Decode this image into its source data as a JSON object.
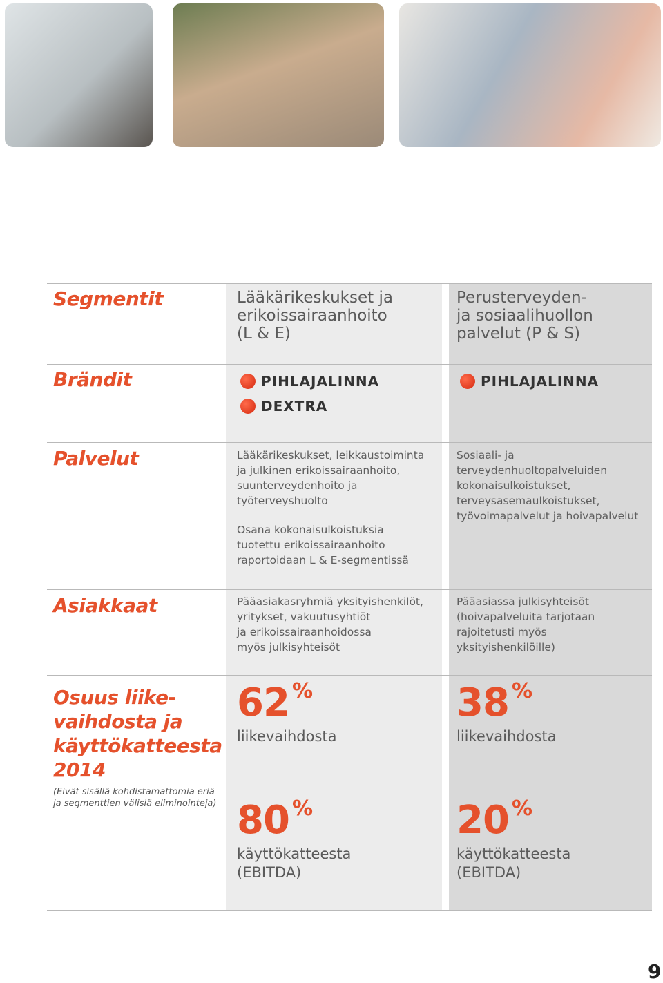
{
  "segments": {
    "label": "Segmentit",
    "le": [
      "Lääkärikeskukset ja",
      "erikoissairaanhoito",
      "(L & E)"
    ],
    "ps": [
      "Perusterveyden-",
      "ja sosiaalihuollon",
      "palvelut (P & S)"
    ]
  },
  "brands": {
    "label": "Brändit",
    "le": [
      "PIHLAJALINNA",
      "DEXTRA"
    ],
    "ps": [
      "PIHLAJALINNA"
    ]
  },
  "services": {
    "label": "Palvelut",
    "le": [
      "Lääkärikeskukset, leikkaustoiminta",
      "ja julkinen erikoissairaanhoito,",
      "suunterveydenhoito ja",
      "työterveyshuolto"
    ],
    "le_note": [
      "Osana kokonaisulkoistuksia",
      "tuotettu erikoissairaanhoito",
      "raportoidaan L & E-segmentissä"
    ],
    "ps": [
      "Sosiaali- ja",
      "terveydenhuoltopalveluiden",
      "kokonaisulkoistukset,",
      "terveysasemaulkoistukset,",
      "työvoimapalvelut ja hoivapalvelut"
    ]
  },
  "customers": {
    "label": "Asiakkaat",
    "le": [
      "Pääasiakasryhmiä yksityishenkilöt,",
      "yritykset, vakuutusyhtiöt",
      "ja erikoissairaanhoidossa",
      "myös julkisyhteisöt"
    ],
    "ps": [
      "Pääasiassa julkisyhteisöt",
      "(hoivapalveluita tarjotaan",
      "rajoitetusti myös",
      "yksityishenkilöille)"
    ]
  },
  "share": {
    "label": [
      "Osuus liike-",
      "vaihdosta ja",
      "käyttökatteesta",
      "2014"
    ],
    "note": [
      "(Eivät sisällä kohdistamattomia eriä",
      "ja segmenttien välisiä eliminointeja)"
    ],
    "unit": "%",
    "revenue_label": "liikevaihdosta",
    "ebitda_label": [
      "käyttökatteesta",
      "(EBITDA)"
    ],
    "le": {
      "revenue": 62,
      "ebitda": 80
    },
    "ps": {
      "revenue": 38,
      "ebitda": 20
    }
  },
  "page_number": 9
}
